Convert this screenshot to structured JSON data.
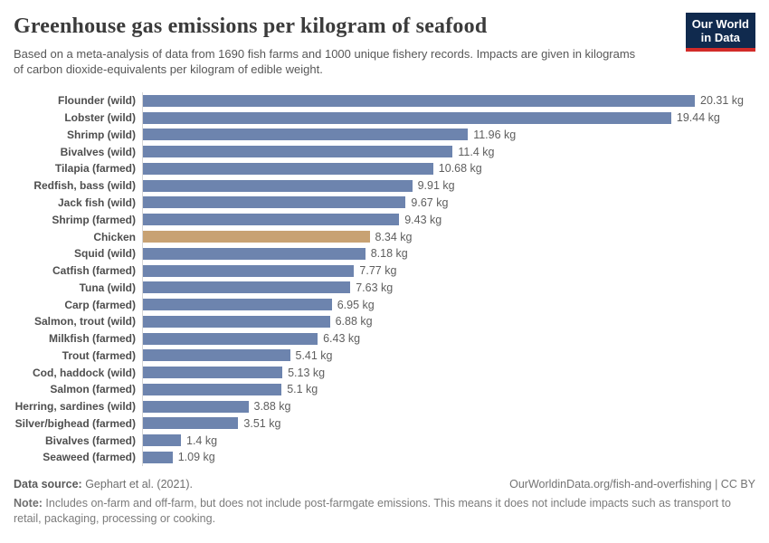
{
  "header": {
    "title": "Greenhouse gas emissions per kilogram of seafood",
    "subtitle": "Based on a meta-analysis of data from 1690 fish farms and 1000 unique fishery records. Impacts are given in kilograms of carbon dioxide-equivalents per kilogram of edible weight.",
    "logo": {
      "line1": "Our World",
      "line2": "in Data"
    }
  },
  "chart_data": {
    "type": "bar",
    "orientation": "horizontal",
    "title": "Greenhouse gas emissions per kilogram of seafood",
    "xlabel": "kg CO2-equivalents per kg edible weight",
    "ylabel": "",
    "xlim": [
      0,
      20.31
    ],
    "grid": false,
    "legend": false,
    "categories": [
      "Flounder (wild)",
      "Lobster (wild)",
      "Shrimp (wild)",
      "Bivalves (wild)",
      "Tilapia (farmed)",
      "Redfish, bass (wild)",
      "Jack fish (wild)",
      "Shrimp (farmed)",
      "Chicken",
      "Squid (wild)",
      "Catfish (farmed)",
      "Tuna (wild)",
      "Carp (farmed)",
      "Salmon, trout (wild)",
      "Milkfish (farmed)",
      "Trout (farmed)",
      "Cod, haddock (wild)",
      "Salmon (farmed)",
      "Herring, sardines (wild)",
      "Silver/bighead (farmed)",
      "Bivalves (farmed)",
      "Seaweed (farmed)"
    ],
    "values": [
      20.31,
      19.44,
      11.96,
      11.4,
      10.68,
      9.91,
      9.67,
      9.43,
      8.34,
      8.18,
      7.77,
      7.63,
      6.95,
      6.88,
      6.43,
      5.41,
      5.13,
      5.1,
      3.88,
      3.51,
      1.4,
      1.09
    ],
    "value_labels": [
      "20.31 kg",
      "19.44 kg",
      "11.96 kg",
      "11.4 kg",
      "10.68 kg",
      "9.91 kg",
      "9.67 kg",
      "9.43 kg",
      "8.34 kg",
      "8.18 kg",
      "7.77 kg",
      "7.63 kg",
      "6.95 kg",
      "6.88 kg",
      "6.43 kg",
      "5.41 kg",
      "5.13 kg",
      "5.1 kg",
      "3.88 kg",
      "3.51 kg",
      "1.4 kg",
      "1.09 kg"
    ],
    "highlight_category": "Chicken",
    "bar_color": "#6d84ae",
    "highlight_color": "#c8a273",
    "axis_line_color": "#d6d6d6"
  },
  "footer": {
    "source_label": "Data source:",
    "source_value": " Gephart et al. (2021).",
    "link": "OurWorldinData.org/fish-and-overfishing | CC BY",
    "note_label": "Note:",
    "note_value": " Includes on-farm and off-farm, but does not include post-farmgate emissions. This means it does not include impacts such as transport to retail, packaging, processing or cooking."
  }
}
